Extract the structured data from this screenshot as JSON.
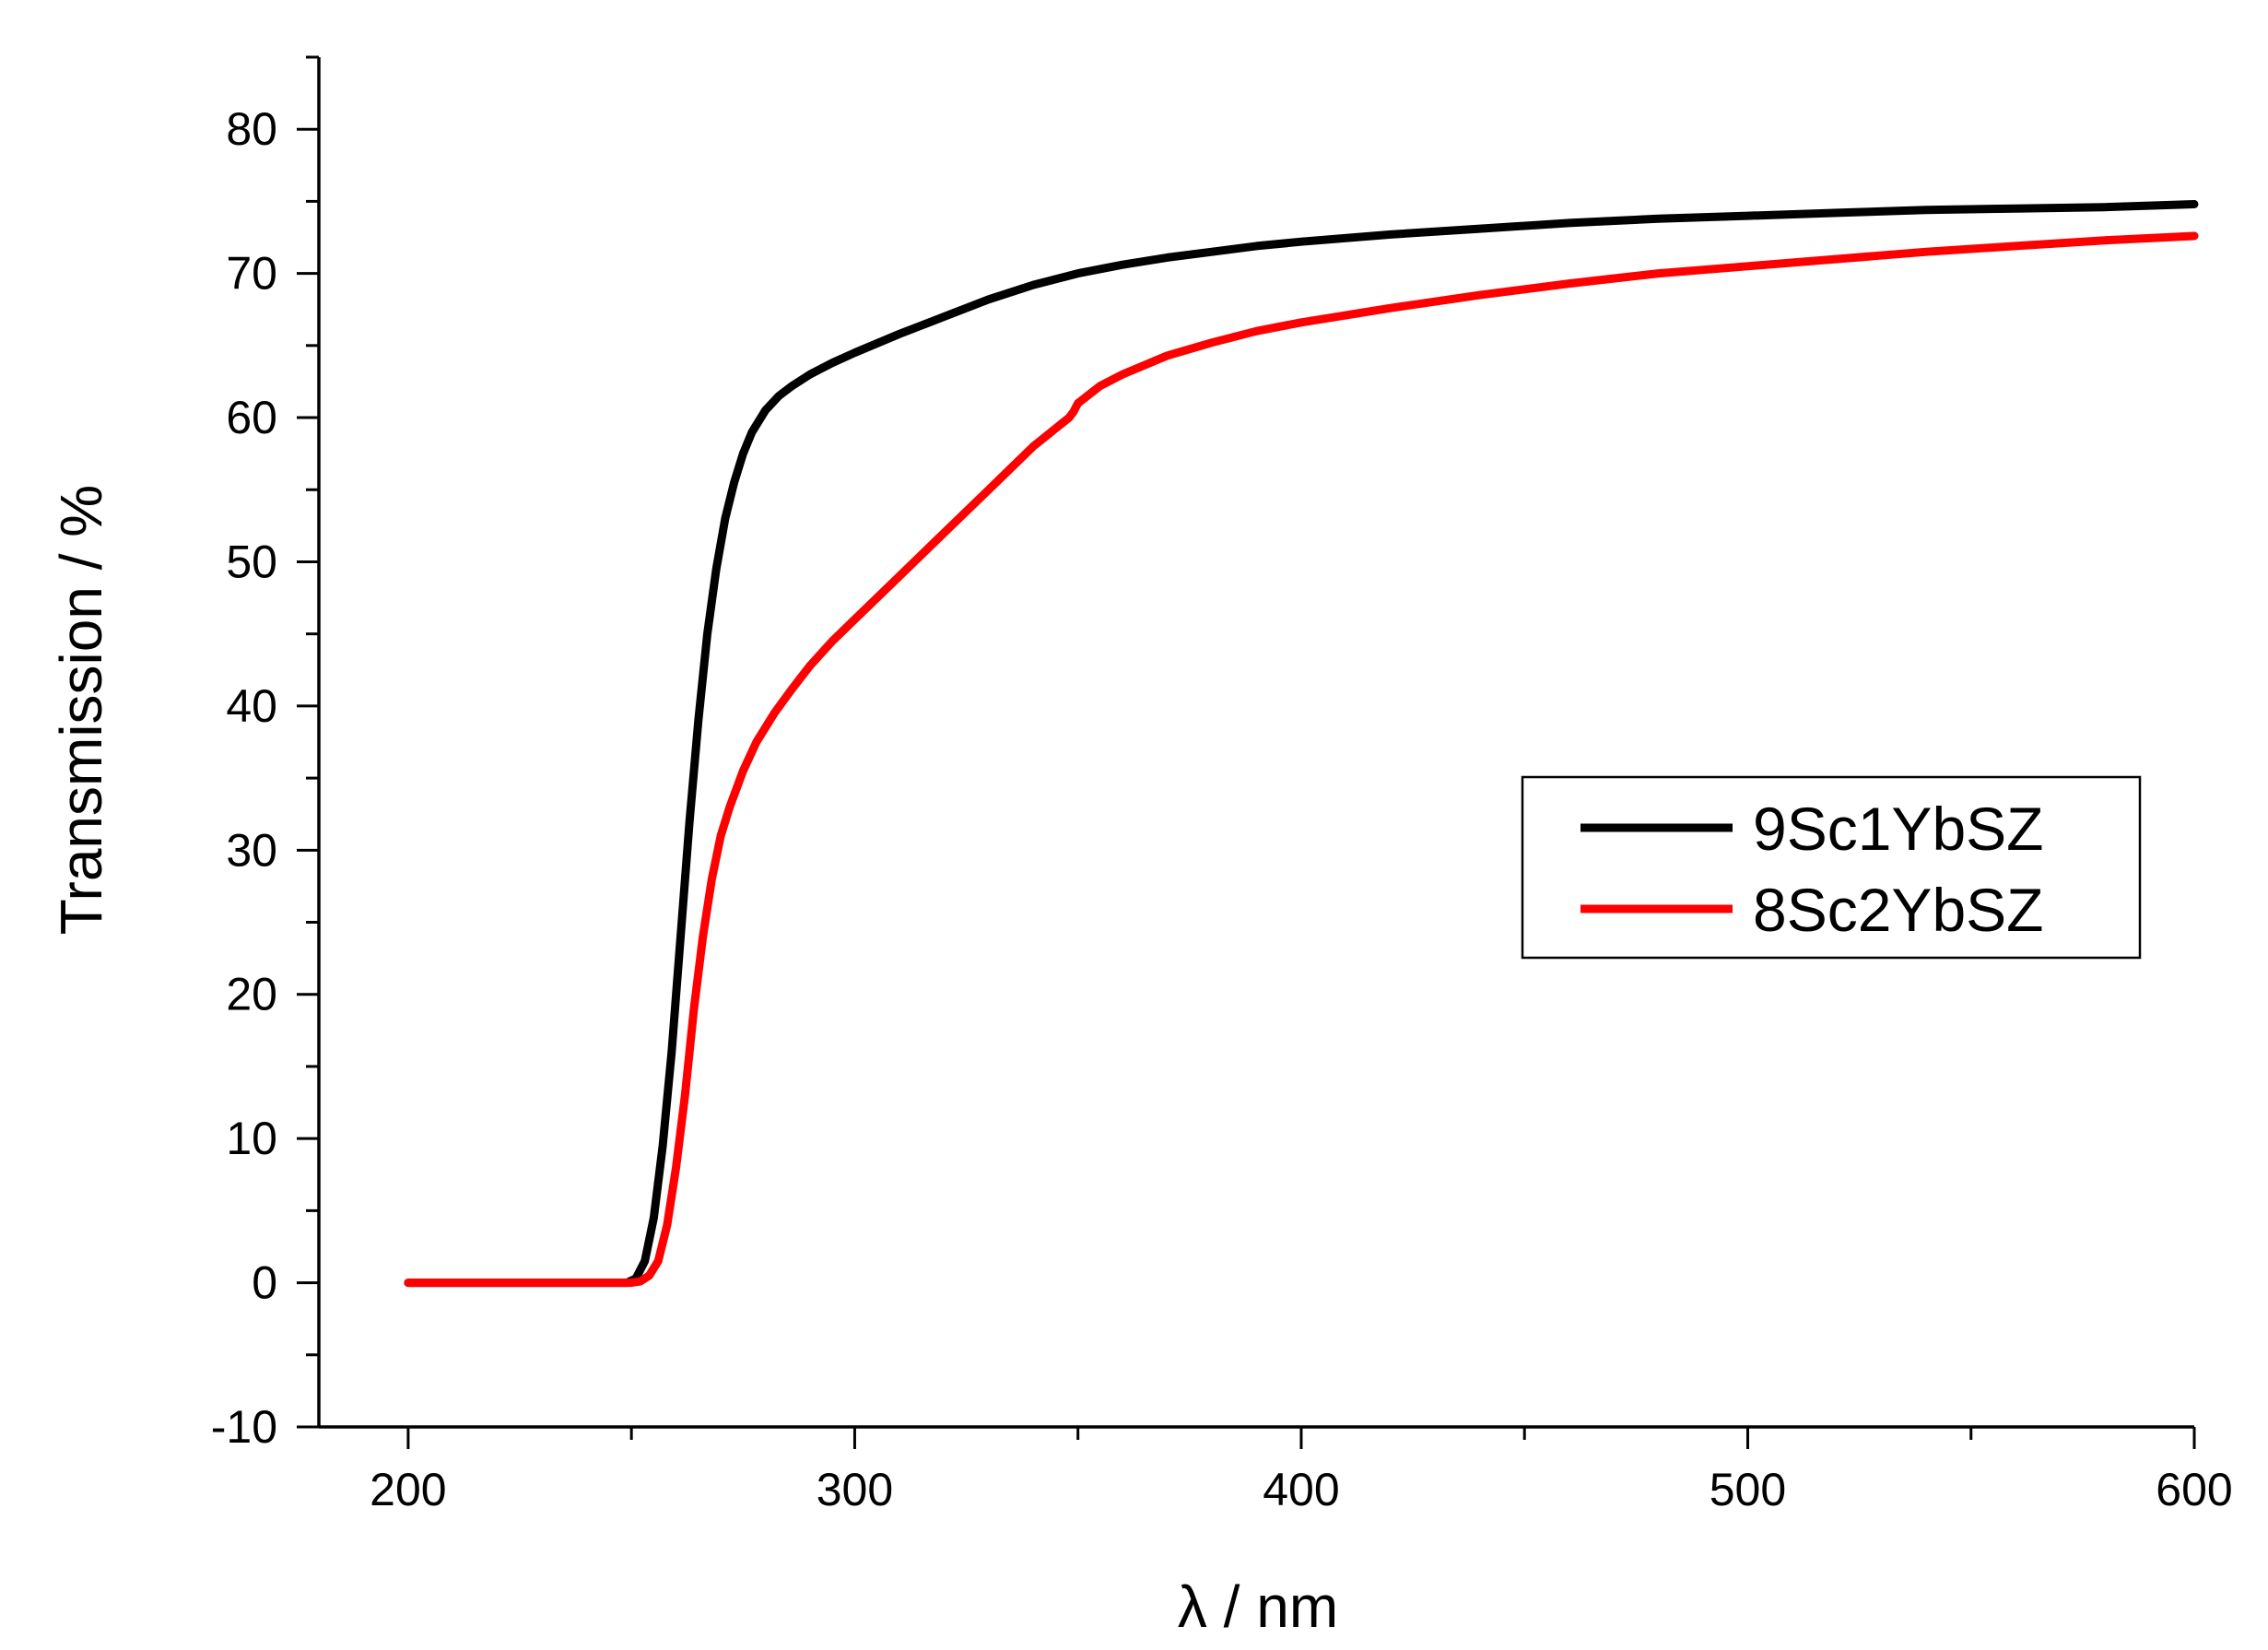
{
  "chart_data": {
    "type": "line",
    "title": "",
    "xlabel": "λ / nm",
    "ylabel": "Transmission / %",
    "xlim": [
      180,
      600
    ],
    "ylim": [
      -10,
      85
    ],
    "xticks": [
      200,
      300,
      400,
      500,
      600
    ],
    "yticks": [
      -10,
      0,
      10,
      20,
      30,
      40,
      50,
      60,
      70,
      80
    ],
    "x_minor_step": 50,
    "y_minor_step": 5,
    "grid": false,
    "legend_position": "right",
    "series": [
      {
        "name": "9Sc1YbSZ",
        "color": "#000000",
        "x": [
          200,
          230,
          249,
          251,
          253,
          255,
          257,
          259,
          261,
          263,
          265,
          267,
          269,
          271,
          273,
          275,
          277,
          280,
          283,
          286,
          290,
          295,
          300,
          310,
          320,
          330,
          340,
          350,
          360,
          370,
          380,
          390,
          400,
          420,
          440,
          460,
          480,
          500,
          520,
          540,
          560,
          580,
          600
        ],
        "y": [
          0,
          0,
          0,
          0.3,
          1.5,
          4.5,
          9.5,
          16,
          24,
          32,
          39,
          45,
          49.5,
          53,
          55.5,
          57.5,
          59,
          60.5,
          61.5,
          62.2,
          63,
          63.8,
          64.5,
          65.8,
          67,
          68.2,
          69.2,
          70,
          70.6,
          71.1,
          71.5,
          71.9,
          72.2,
          72.7,
          73.1,
          73.5,
          73.8,
          74,
          74.2,
          74.4,
          74.5,
          74.6,
          74.8
        ]
      },
      {
        "name": "8Sc2YbSZ",
        "color": "#ff0000",
        "x": [
          200,
          230,
          250,
          252,
          254,
          256,
          258,
          260,
          262,
          264,
          266,
          268,
          270,
          272,
          275,
          278,
          282,
          286,
          290,
          295,
          300,
          310,
          320,
          330,
          340,
          348,
          349,
          350,
          355,
          360,
          370,
          380,
          390,
          400,
          420,
          440,
          460,
          480,
          500,
          520,
          540,
          560,
          580,
          600
        ],
        "y": [
          0,
          0,
          0,
          0.1,
          0.5,
          1.5,
          4,
          8,
          13,
          19,
          24,
          28,
          31,
          33,
          35.5,
          37.5,
          39.5,
          41.2,
          42.8,
          44.5,
          46,
          49,
          52,
          55,
          58,
          60,
          60.4,
          61,
          62.2,
          63,
          64.3,
          65.2,
          66,
          66.6,
          67.6,
          68.5,
          69.3,
          70,
          70.5,
          71,
          71.5,
          71.9,
          72.3,
          72.6
        ]
      }
    ]
  }
}
